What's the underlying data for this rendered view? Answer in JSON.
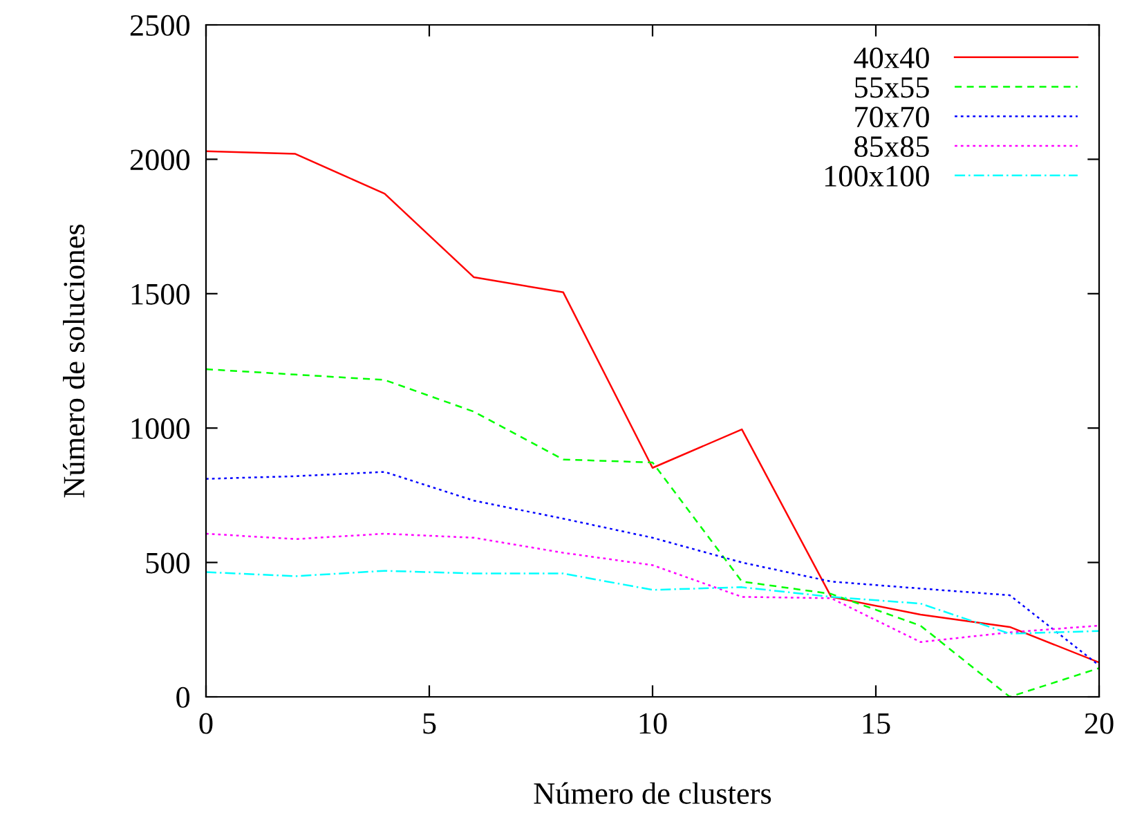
{
  "chart_data": {
    "type": "line",
    "xlabel": "Número de clusters",
    "ylabel": "Número de soluciones",
    "x": [
      0,
      2,
      4,
      6,
      8,
      10,
      12,
      14,
      16,
      18,
      20
    ],
    "series": [
      {
        "name": "40x40",
        "color": "#ff0000",
        "line_style": "solid",
        "values": [
          2030,
          2020,
          1872,
          1561,
          1505,
          852,
          995,
          372,
          306,
          260,
          128
        ]
      },
      {
        "name": "55x55",
        "color": "#00ff00",
        "line_style": "dashed",
        "values": [
          1219,
          1199,
          1179,
          1061,
          883,
          872,
          429,
          383,
          265,
          0,
          107
        ]
      },
      {
        "name": "70x70",
        "color": "#0000ff",
        "line_style": "dotted",
        "values": [
          811,
          821,
          837,
          730,
          663,
          592,
          500,
          429,
          403,
          378,
          117
        ]
      },
      {
        "name": "85x85",
        "color": "#ff00ff",
        "line_style": "dotted",
        "values": [
          607,
          587,
          607,
          592,
          536,
          490,
          372,
          367,
          204,
          240,
          265
        ]
      },
      {
        "name": "100x100",
        "color": "#00ffff",
        "line_style": "dashdot",
        "values": [
          464,
          449,
          469,
          459,
          459,
          398,
          408,
          372,
          347,
          235,
          245
        ]
      }
    ],
    "xlim": [
      0,
      20
    ],
    "xticks": [
      0,
      5,
      10,
      15,
      20
    ],
    "ylim": [
      0,
      2500
    ],
    "yticks": [
      0,
      500,
      1000,
      1500,
      2000,
      2500
    ],
    "grid": false,
    "legend": "top right",
    "marker": "none"
  }
}
